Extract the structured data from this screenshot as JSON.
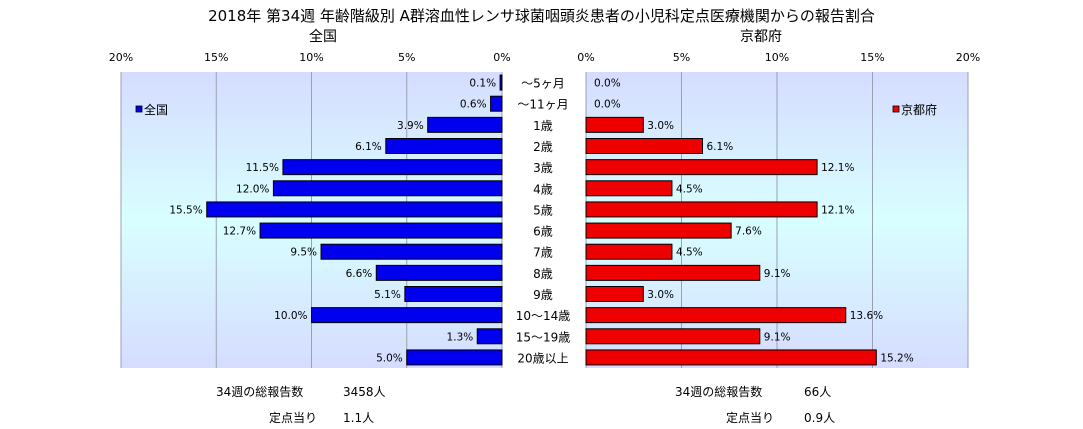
{
  "title": "2018年 第34週 年齢階級別 A群溶血性レンサ球菌咽頭炎患者の小児科定点医療機関からの報告割合",
  "chart_data": {
    "type": "bar",
    "orientation": "horizontal-butterfly",
    "categories": [
      "～5ヶ月",
      "～11ヶ月",
      "1歳",
      "2歳",
      "3歳",
      "4歳",
      "5歳",
      "6歳",
      "7歳",
      "8歳",
      "9歳",
      "10～14歳",
      "15～19歳",
      "20歳以上"
    ],
    "panels": [
      {
        "title": "全国",
        "legend": "全国",
        "legend_position": "left",
        "direction": "left",
        "color": "#0000ee",
        "xlim": [
          0,
          20
        ],
        "ticks": [
          "20%",
          "15%",
          "10%",
          "5%",
          "0%"
        ],
        "tick_values": [
          20,
          15,
          10,
          5,
          0
        ],
        "values": [
          0.1,
          0.6,
          3.9,
          6.1,
          11.5,
          12.0,
          15.5,
          12.7,
          9.5,
          6.6,
          5.1,
          10.0,
          1.3,
          5.0
        ],
        "labels": [
          "0.1%",
          "0.6%",
          "3.9%",
          "6.1%",
          "11.5%",
          "12.0%",
          "15.5%",
          "12.7%",
          "9.5%",
          "6.6%",
          "5.1%",
          "10.0%",
          "1.3%",
          "5.0%"
        ]
      },
      {
        "title": "京都府",
        "legend": "京都府",
        "legend_position": "right",
        "direction": "right",
        "color": "#ee0000",
        "xlim": [
          0,
          20
        ],
        "ticks": [
          "0%",
          "5%",
          "10%",
          "15%",
          "20%"
        ],
        "tick_values": [
          0,
          5,
          10,
          15,
          20
        ],
        "values": [
          0.0,
          0.0,
          3.0,
          6.1,
          12.1,
          4.5,
          12.1,
          7.6,
          4.5,
          9.1,
          3.0,
          13.6,
          9.1,
          15.2
        ],
        "labels": [
          "0.0%",
          "0.0%",
          "3.0%",
          "6.1%",
          "12.1%",
          "4.5%",
          "12.1%",
          "7.6%",
          "4.5%",
          "9.1%",
          "3.0%",
          "13.6%",
          "9.1%",
          "15.2%"
        ]
      }
    ]
  },
  "summary": {
    "national": {
      "total_label": "34週の総報告数",
      "total_value": "3458人",
      "per_site_label": "定点当り",
      "per_site_value": "1.1人"
    },
    "kyoto": {
      "total_label": "34週の総報告数",
      "total_value": "66人",
      "per_site_label": "定点当り",
      "per_site_value": "0.9人"
    }
  }
}
